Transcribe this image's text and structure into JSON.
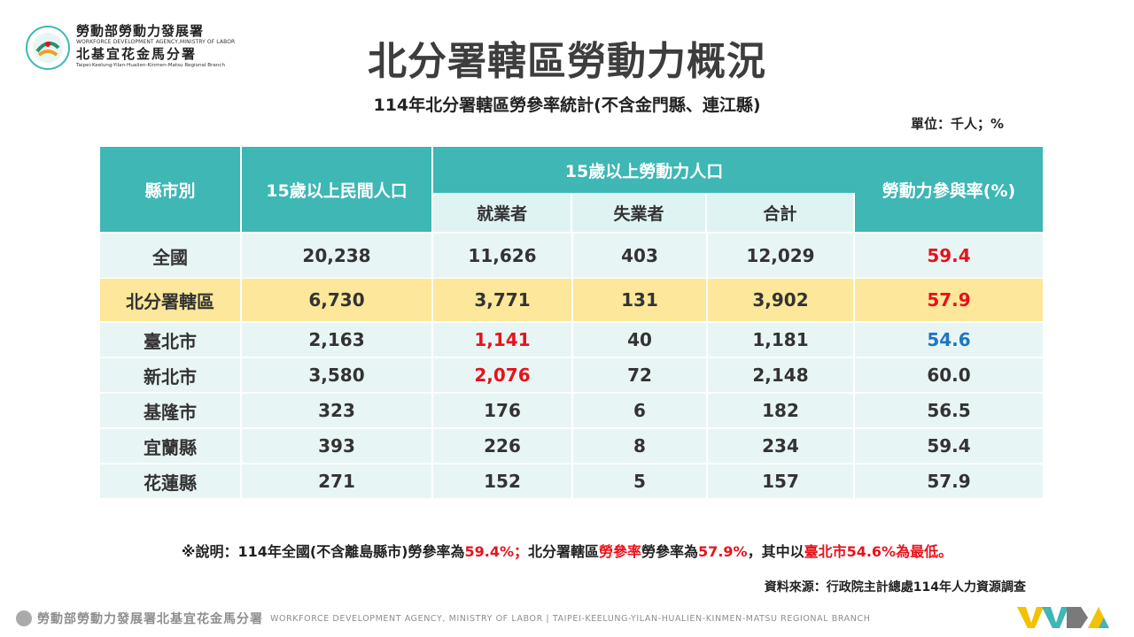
{
  "logo": {
    "line1": "勞動部勞動力發展署",
    "line2": "WORKFORCE DEVELOPMENT AGENCY,MINISTRY OF LABOR",
    "line3": "北基宜花金馬分署",
    "line4": "Taipei-Keelung-Yilan-Hualien-Kinmen-Matsu Regional Branch"
  },
  "title": "北分署轄區勞動力概況",
  "subtitle": "114年北分署轄區勞參率統計(不含金門縣、連江縣)",
  "unit": "單位：千人；%",
  "table": {
    "headers": {
      "region": "縣市別",
      "population": "15歲以上民間人口",
      "labor_force": "15歲以上勞動力人口",
      "employed": "就業者",
      "unemployed": "失業者",
      "total": "合計",
      "rate": "勞動力參與率(%)"
    },
    "rows": [
      {
        "region": "全國",
        "population": "20,238",
        "employed": "11,626",
        "unemployed": "403",
        "total": "12,029",
        "rate": "59.4"
      },
      {
        "region": "北分署轄區",
        "population": "6,730",
        "employed": "3,771",
        "unemployed": "131",
        "total": "3,902",
        "rate": "57.9"
      },
      {
        "region": "臺北市",
        "population": "2,163",
        "employed": "1,141",
        "unemployed": "40",
        "total": "1,181",
        "rate": "54.6"
      },
      {
        "region": "新北市",
        "population": "3,580",
        "employed": "2,076",
        "unemployed": "72",
        "total": "2,148",
        "rate": "60.0"
      },
      {
        "region": "基隆市",
        "population": "323",
        "employed": "176",
        "unemployed": "6",
        "total": "182",
        "rate": "56.5"
      },
      {
        "region": "宜蘭縣",
        "population": "393",
        "employed": "226",
        "unemployed": "8",
        "total": "234",
        "rate": "59.4"
      },
      {
        "region": "花蓮縣",
        "population": "271",
        "employed": "152",
        "unemployed": "5",
        "total": "157",
        "rate": "57.9"
      }
    ]
  },
  "note": {
    "p1": "※說明：114年全國(不含離島縣市)勞參率為",
    "p2": "59.4%；",
    "p3": "北分署轄區",
    "p4": "勞參率",
    "p5": "勞參率為",
    "p6": "57.9%",
    "p7": "，其中以",
    "p8": "臺北市54.6%為最低。"
  },
  "source": "資料來源：行政院主計總處114年人力資源調查",
  "footer": {
    "zh": "勞動部勞動力發展署北基宜花金馬分署",
    "en": "WORKFORCE DEVELOPMENT AGENCY, MINISTRY OF LABOR  |  TAIPEI-KEELUNG-YILAN-HUALIEN-KINMEN-MATSU REGIONAL BRANCH"
  },
  "colors": {
    "header_teal": "#3eb7b5",
    "sub_header": "#dff3f3",
    "row_light": "#e8f5f5",
    "row_highlight": "#fde79a",
    "red": "#e8121b",
    "blue": "#1c77c3"
  }
}
